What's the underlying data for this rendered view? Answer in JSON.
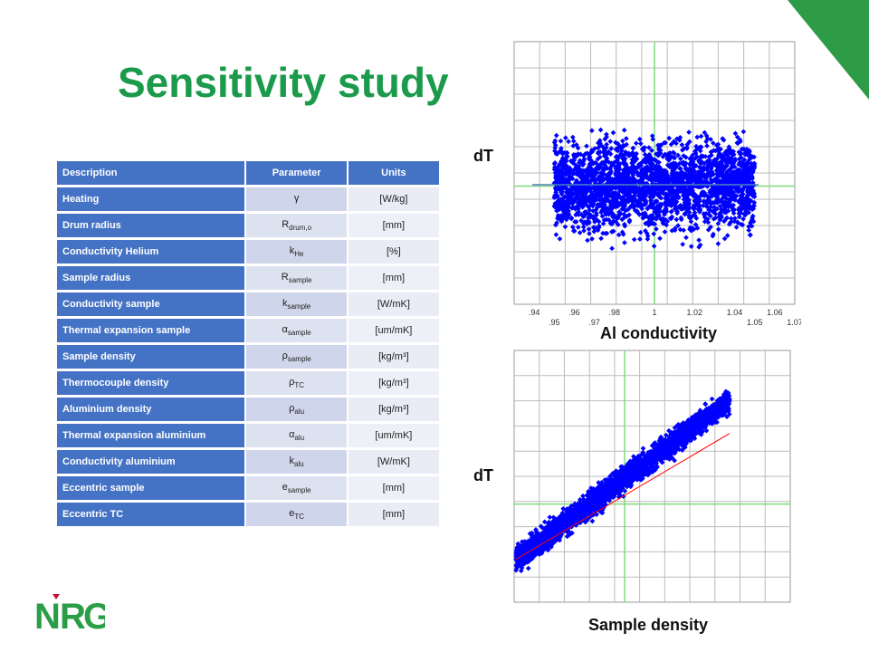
{
  "title": "Sensitivity study",
  "table": {
    "headers": [
      "Description",
      "Parameter",
      "Units"
    ],
    "rows": [
      {
        "description": "Heating",
        "param": "γ",
        "sub": "",
        "unit": "[W/kg]"
      },
      {
        "description": "Drum radius",
        "param": "R",
        "sub": "drum,o",
        "unit": "[mm]"
      },
      {
        "description": "Conductivity Helium",
        "param": "k",
        "sub": "He",
        "unit": "[%]"
      },
      {
        "description": "Sample radius",
        "param": "R",
        "sub": "sample",
        "unit": "[mm]"
      },
      {
        "description": "Conductivity sample",
        "param": "k",
        "sub": "sample",
        "unit": "[W/mK]"
      },
      {
        "description": "Thermal expansion sample",
        "param": "α",
        "sub": "sample",
        "unit": "[um/mK]"
      },
      {
        "description": "Sample density",
        "param": "ρ",
        "sub": "sample",
        "unit": "[kg/m³]"
      },
      {
        "description": "Thermocouple density",
        "param": "ρ",
        "sub": "TC",
        "unit": "[kg/m³]"
      },
      {
        "description": "Aluminium density",
        "param": "ρ",
        "sub": "alu",
        "unit": "[kg/m³]"
      },
      {
        "description": "Thermal expansion aluminium",
        "param": "α",
        "sub": "alu",
        "unit": "[um/mK]"
      },
      {
        "description": "Conductivity aluminium",
        "param": "k",
        "sub": "alu",
        "unit": "[W/mK]"
      },
      {
        "description": "Eccentric sample",
        "param": "e",
        "sub": "sample",
        "unit": "[mm]"
      },
      {
        "description": "Eccentric TC",
        "param": "e",
        "sub": "TC",
        "unit": "[mm]"
      }
    ]
  },
  "charts": {
    "top": {
      "ylabel": "dT",
      "xlabel": "Al conductivity"
    },
    "bottom": {
      "ylabel": "dT",
      "xlabel": "Sample density"
    }
  },
  "chart_data": [
    {
      "type": "scatter",
      "xlabel": "Al conductivity",
      "ylabel": "dT",
      "x_ticks_top": [
        ".94",
        ".96",
        ".98",
        "1",
        "1.02",
        "1.04",
        "1.06"
      ],
      "x_ticks_bottom": [
        ".95",
        ".97",
        "1.05",
        "1.07"
      ],
      "xlim": [
        0.93,
        1.07
      ],
      "x_range": [
        0.95,
        1.05
      ],
      "trend": "none",
      "color": "#0000ff"
    },
    {
      "type": "scatter",
      "xlabel": "Sample density",
      "ylabel": "dT",
      "trend": "positive linear",
      "color": "#0000ff",
      "fit_color": "#ff0000"
    }
  ],
  "logo": {
    "text": "NRG",
    "colors": {
      "green": "#2a9d47",
      "red": "#c8102e"
    }
  },
  "colors": {
    "title": "#1a9a4a",
    "accent": "#2e9b46",
    "table_header": "#4472c4"
  }
}
